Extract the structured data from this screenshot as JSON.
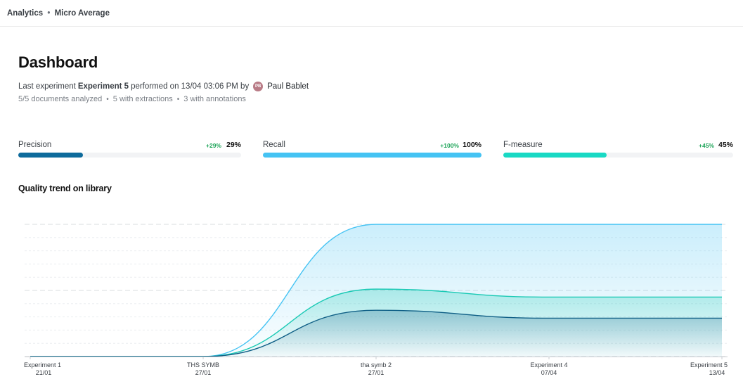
{
  "breadcrumb": {
    "section": "Analytics",
    "separator": "•",
    "page": "Micro Average"
  },
  "header": {
    "title": "Dashboard",
    "last_prefix": "Last experiment",
    "last_experiment": "Experiment 5",
    "last_middle": "performed on 13/04 03:06 PM by",
    "user_initials": "PB",
    "user_name": "Paul Bablet"
  },
  "stats": {
    "documents": "5/5 documents analyzed",
    "extractions": "5 with extractions",
    "annotations": "3 with annotations",
    "separator": "•"
  },
  "metrics": [
    {
      "label": "Precision",
      "delta": "+29%",
      "value": "29%",
      "level": 0.29,
      "color": "#0e6b9c"
    },
    {
      "label": "Recall",
      "delta": "+100%",
      "value": "100%",
      "level": 1.0,
      "color": "#45c3f3"
    },
    {
      "label": "F-measure",
      "delta": "+45%",
      "value": "45%",
      "level": 0.45,
      "color": "#19d9c4"
    }
  ],
  "chart_title": "Quality trend on library",
  "chart_data": {
    "type": "area",
    "categories": [
      {
        "name": "Experiment 1",
        "date": "21/01"
      },
      {
        "name": "THS SYMB",
        "date": "27/01"
      },
      {
        "name": "tha symb 2",
        "date": "27/01"
      },
      {
        "name": "Experiment 4",
        "date": "07/04"
      },
      {
        "name": "Experiment 5",
        "date": "13/04"
      }
    ],
    "ylim": [
      0,
      100
    ],
    "grid": true,
    "series": [
      {
        "key": "recall",
        "values": [
          0,
          0,
          100,
          100,
          100
        ],
        "color": "#45c3f3"
      },
      {
        "key": "fmeasure",
        "values": [
          0,
          0,
          51,
          45,
          45
        ],
        "color": "#19c9b4"
      },
      {
        "key": "precision",
        "values": [
          0,
          0,
          35,
          29,
          29
        ],
        "color": "#0f5f86"
      }
    ]
  }
}
